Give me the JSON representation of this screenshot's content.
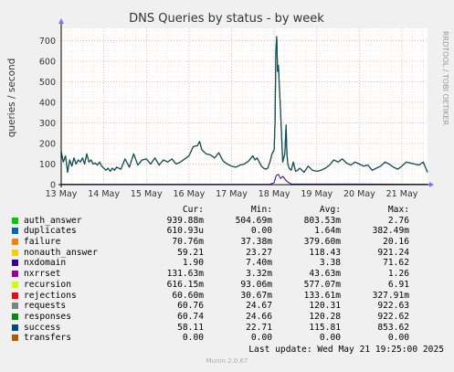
{
  "chart_data": {
    "type": "line",
    "title": "DNS Queries by status - by week",
    "ylabel": "queries / second",
    "side_note": "RRDTOOL / TOBI OETIKER",
    "ylim": [
      0,
      760
    ],
    "yticks": [
      0,
      100,
      200,
      300,
      400,
      500,
      600,
      700
    ],
    "xticks": [
      "13 May",
      "14 May",
      "15 May",
      "16 May",
      "17 May",
      "18 May",
      "19 May",
      "20 May",
      "21 May"
    ],
    "x_range_days": [
      0,
      8.6
    ],
    "grid": true,
    "legend_position": "bottom",
    "columns": [
      "Cur:",
      "Min:",
      "Avg:",
      "Max:"
    ],
    "series": [
      {
        "name": "auth_answer",
        "color": "#00cc00",
        "cur": "939.88m",
        "min": "504.69m",
        "avg": "803.53m",
        "max": "2.76"
      },
      {
        "name": "duplicates",
        "color": "#0066b3",
        "cur": "610.93u",
        "min": "0.00",
        "avg": "1.64m",
        "max": "382.49m"
      },
      {
        "name": "failure",
        "color": "#ff8000",
        "cur": "70.76m",
        "min": "37.38m",
        "avg": "379.60m",
        "max": "20.16"
      },
      {
        "name": "nonauth_answer",
        "color": "#ffcc00",
        "cur": "59.21",
        "min": "23.27",
        "avg": "118.43",
        "max": "921.24"
      },
      {
        "name": "nxdomain",
        "color": "#330099",
        "cur": "1.90",
        "min": "7.40m",
        "avg": "3.38",
        "max": "71.62"
      },
      {
        "name": "nxrrset",
        "color": "#990099",
        "cur": "131.63m",
        "min": "3.32m",
        "avg": "43.63m",
        "max": "1.26"
      },
      {
        "name": "recursion",
        "color": "#ccff00",
        "cur": "616.15m",
        "min": "93.06m",
        "avg": "577.07m",
        "max": "6.91"
      },
      {
        "name": "rejections",
        "color": "#ff0000",
        "cur": "60.60m",
        "min": "30.67m",
        "avg": "133.61m",
        "max": "327.91m"
      },
      {
        "name": "requests",
        "color": "#808080",
        "cur": "60.76",
        "min": "24.67",
        "avg": "120.31",
        "max": "922.63"
      },
      {
        "name": "responses",
        "color": "#008f00",
        "cur": "60.74",
        "min": "24.66",
        "avg": "120.28",
        "max": "922.62"
      },
      {
        "name": "success",
        "color": "#00487d",
        "cur": "58.11",
        "min": "22.71",
        "avg": "115.81",
        "max": "853.62"
      },
      {
        "name": "transfers",
        "color": "#b35a00",
        "cur": "0.00",
        "min": "0.00",
        "avg": "0.00",
        "max": "0.00"
      }
    ],
    "main_line": {
      "x_days": [
        0,
        0.05,
        0.1,
        0.15,
        0.2,
        0.25,
        0.3,
        0.35,
        0.4,
        0.45,
        0.5,
        0.55,
        0.6,
        0.65,
        0.7,
        0.75,
        0.8,
        0.85,
        0.9,
        0.95,
        1.0,
        1.05,
        1.1,
        1.15,
        1.2,
        1.25,
        1.3,
        1.4,
        1.5,
        1.6,
        1.7,
        1.8,
        1.9,
        2.0,
        2.1,
        2.2,
        2.3,
        2.4,
        2.5,
        2.6,
        2.7,
        2.8,
        2.9,
        3.0,
        3.1,
        3.2,
        3.25,
        3.3,
        3.35,
        3.4,
        3.5,
        3.6,
        3.7,
        3.8,
        3.9,
        4.0,
        4.1,
        4.2,
        4.3,
        4.4,
        4.5,
        4.55,
        4.6,
        4.65,
        4.7,
        4.75,
        4.8,
        4.85,
        4.9,
        4.95,
        5.0,
        5.02,
        5.04,
        5.06,
        5.08,
        5.1,
        5.12,
        5.15,
        5.2,
        5.25,
        5.28,
        5.3,
        5.32,
        5.35,
        5.4,
        5.45,
        5.5,
        5.55,
        5.6,
        5.7,
        5.8,
        5.9,
        6.0,
        6.1,
        6.2,
        6.3,
        6.4,
        6.5,
        6.6,
        6.7,
        6.8,
        6.9,
        7.0,
        7.1,
        7.2,
        7.3,
        7.4,
        7.5,
        7.6,
        7.7,
        7.8,
        7.9,
        8.0,
        8.1,
        8.2,
        8.3,
        8.4,
        8.5,
        8.6
      ],
      "y": [
        160,
        110,
        140,
        60,
        120,
        90,
        130,
        100,
        120,
        110,
        130,
        100,
        150,
        110,
        120,
        100,
        105,
        95,
        110,
        90,
        80,
        70,
        80,
        65,
        80,
        70,
        85,
        75,
        125,
        85,
        150,
        95,
        120,
        125,
        100,
        130,
        95,
        120,
        110,
        125,
        100,
        110,
        125,
        140,
        185,
        190,
        210,
        170,
        160,
        150,
        145,
        130,
        155,
        115,
        100,
        90,
        85,
        95,
        100,
        115,
        140,
        120,
        130,
        110,
        90,
        80,
        75,
        80,
        110,
        150,
        170,
        300,
        650,
        720,
        550,
        580,
        490,
        360,
        110,
        150,
        290,
        150,
        100,
        80,
        70,
        110,
        65,
        70,
        80,
        60,
        90,
        70,
        65,
        70,
        80,
        95,
        120,
        110,
        125,
        105,
        95,
        110,
        100,
        90,
        95,
        70,
        80,
        90,
        110,
        100,
        85,
        75,
        90,
        110,
        105,
        100,
        95,
        110,
        60
      ]
    },
    "nxdomain_line": {
      "x_days": [
        0,
        4.9,
        5.0,
        5.05,
        5.1,
        5.15,
        5.2,
        5.3,
        5.4,
        8.6
      ],
      "y": [
        2,
        2,
        10,
        45,
        50,
        30,
        40,
        15,
        3,
        2
      ]
    }
  },
  "footer": {
    "last_update": "Last update: Wed May 21 19:25:00 2025",
    "munin": "Munin 2.0.67"
  }
}
